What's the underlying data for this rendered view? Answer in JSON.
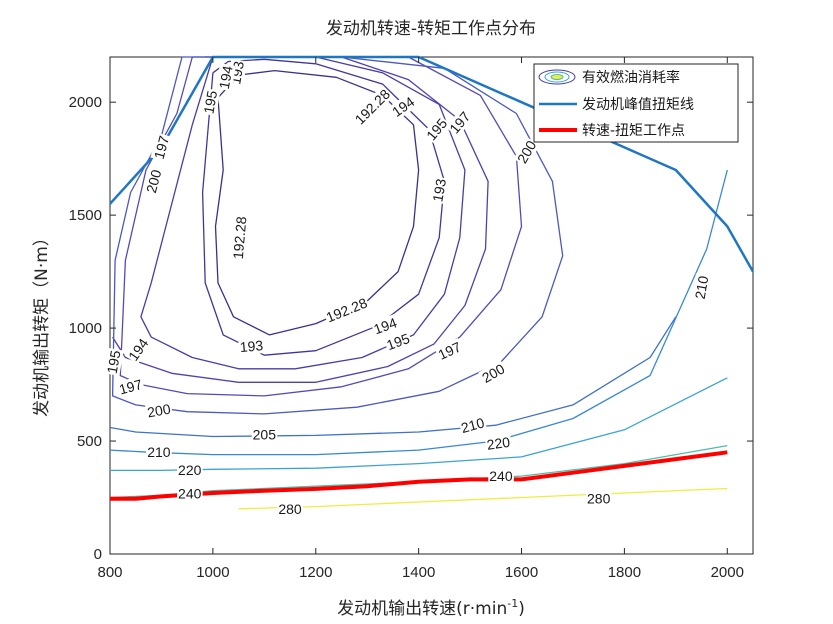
{
  "chart_data": {
    "type": "contour",
    "title": "发动机转速-转矩工作点分布",
    "xlabel": "发动机输出转速(r·min",
    "xlabel_sup": "-1",
    "xlabel_close": ")",
    "ylabel": "发动机输出转矩（N·m）",
    "xlim": [
      800,
      2050
    ],
    "ylim": [
      0,
      2200
    ],
    "xticks": [
      800,
      1000,
      1200,
      1400,
      1600,
      1800,
      2000
    ],
    "yticks": [
      0,
      500,
      1000,
      1500,
      2000
    ],
    "legend": {
      "position": "top-right",
      "entries": [
        "有效燃油消耗率",
        "发动机峰值扭矩线",
        "转速-扭矩工作点"
      ]
    },
    "colors": {
      "peak_torque_line": "#1f77c4",
      "operating_points": "#ff0000",
      "contour_low": "#3b2f8f",
      "contour_high": "#ffff33"
    },
    "peak_torque_curve": {
      "x": [
        800,
        900,
        1000,
        1100,
        1200,
        1300,
        1400,
        1500,
        1600,
        1700,
        1800,
        1900,
        2000,
        2050
      ],
      "y": [
        1550,
        1800,
        2200,
        2200,
        2200,
        2200,
        2200,
        2100,
        2000,
        1900,
        1800,
        1700,
        1450,
        1250
      ]
    },
    "operating_points": {
      "x": [
        800,
        850,
        900,
        1000,
        1100,
        1200,
        1300,
        1400,
        1500,
        1600,
        1700,
        1800,
        1900,
        2000
      ],
      "y": [
        245,
        245,
        255,
        270,
        280,
        288,
        300,
        320,
        330,
        330,
        360,
        390,
        420,
        450
      ]
    },
    "contours": [
      {
        "level": "192.28",
        "color": "#3b2f8f",
        "x": [
          1010,
          1050,
          1120,
          1240,
          1330,
          1390,
          1400,
          1390,
          1360,
          1300,
          1200,
          1110,
          1040,
          1010,
          1005,
          1020,
          1010
        ],
        "y": [
          2020,
          2120,
          2140,
          2110,
          2030,
          1900,
          1700,
          1450,
          1250,
          1120,
          1020,
          970,
          1050,
          1200,
          1450,
          1700,
          2020
        ],
        "labels": [
          {
            "text": "192.28",
            "x": 1310,
            "y": 1980,
            "rot": -45
          },
          {
            "text": "192.28",
            "x": 1052,
            "y": 1400,
            "rot": -85
          },
          {
            "text": "192.28",
            "x": 1260,
            "y": 1080,
            "rot": -22
          }
        ]
      },
      {
        "level": "193",
        "color": "#43359a",
        "x": [
          1000,
          1030,
          1100,
          1200,
          1330,
          1420,
          1450,
          1440,
          1400,
          1320,
          1200,
          1100,
          1020,
          985,
          980,
          1000
        ],
        "y": [
          2130,
          2180,
          2190,
          2170,
          2080,
          1880,
          1650,
          1400,
          1150,
          1010,
          900,
          880,
          970,
          1200,
          1600,
          2130
        ],
        "labels": [
          {
            "text": "193",
            "x": 1047,
            "y": 2130,
            "rot": -80
          },
          {
            "text": "193",
            "x": 1440,
            "y": 1610,
            "rot": -80
          },
          {
            "text": "193",
            "x": 1075,
            "y": 920,
            "rot": -5
          }
        ]
      },
      {
        "level": "194",
        "color": "#4b3ca6",
        "x": [
          1000,
          1070,
          1200,
          1330,
          1440,
          1490,
          1480,
          1450,
          1390,
          1290,
          1160,
          1050,
          960,
          880,
          860,
          880,
          960,
          1000
        ],
        "y": [
          2200,
          2200,
          2200,
          2130,
          1990,
          1700,
          1400,
          1150,
          970,
          870,
          820,
          820,
          870,
          960,
          1050,
          1200,
          1900,
          2200
        ],
        "labels": [
          {
            "text": "194",
            "x": 1025,
            "y": 2110,
            "rot": -80
          },
          {
            "text": "194",
            "x": 1370,
            "y": 1980,
            "rot": -35
          },
          {
            "text": "194",
            "x": 1335,
            "y": 1010,
            "rot": -20
          },
          {
            "text": "194",
            "x": 855,
            "y": 905,
            "rot": -55
          }
        ]
      },
      {
        "level": "195",
        "color": "#523fb0",
        "x": [
          985,
          1120,
          1250,
          1380,
          1480,
          1535,
          1530,
          1490,
          1430,
          1340,
          1200,
          1050,
          920,
          830,
          805
        ],
        "y": [
          2200,
          2200,
          2200,
          2100,
          1920,
          1650,
          1350,
          1100,
          930,
          830,
          760,
          760,
          800,
          870,
          960
        ],
        "labels": [
          {
            "text": "195",
            "x": 995,
            "y": 2000,
            "rot": -80
          },
          {
            "text": "195",
            "x": 1435,
            "y": 1880,
            "rot": -50
          },
          {
            "text": "195",
            "x": 1360,
            "y": 940,
            "rot": -20
          },
          {
            "text": "195",
            "x": 807,
            "y": 850,
            "rot": -80
          }
        ]
      },
      {
        "level": "197",
        "color": "#5549b8",
        "x": [
          960,
          1200,
          1380,
          1520,
          1590,
          1600,
          1560,
          1480,
          1380,
          1250,
          1100,
          950,
          860,
          820,
          830,
          870,
          930,
          960
        ],
        "y": [
          2200,
          2200,
          2200,
          2030,
          1760,
          1450,
          1170,
          960,
          820,
          740,
          700,
          710,
          750,
          790,
          1300,
          1700,
          1950,
          2200
        ],
        "labels": [
          {
            "text": "197",
            "x": 1480,
            "y": 1910,
            "rot": -50
          },
          {
            "text": "197",
            "x": 1460,
            "y": 900,
            "rot": -25
          },
          {
            "text": "197",
            "x": 900,
            "y": 1800,
            "rot": -75
          },
          {
            "text": "197",
            "x": 840,
            "y": 740,
            "rot": -15
          }
        ]
      },
      {
        "level": "200",
        "color": "#4a58c0",
        "x": [
          940,
          1250,
          1450,
          1590,
          1660,
          1680,
          1640,
          1560,
          1440,
          1280,
          1100,
          950,
          850,
          805,
          810,
          840,
          900,
          940
        ],
        "y": [
          2200,
          2200,
          2150,
          1950,
          1650,
          1320,
          1050,
          850,
          720,
          650,
          620,
          630,
          660,
          700,
          1300,
          1600,
          1850,
          2200
        ],
        "labels": [
          {
            "text": "200",
            "x": 1610,
            "y": 1780,
            "rot": -60
          },
          {
            "text": "200",
            "x": 1545,
            "y": 800,
            "rot": -30
          },
          {
            "text": "200",
            "x": 885,
            "y": 1650,
            "rot": -75
          },
          {
            "text": "200",
            "x": 895,
            "y": 635,
            "rot": -10
          }
        ]
      },
      {
        "level": "205",
        "color": "#3e70cc",
        "x": [
          800,
          850,
          1000,
          1200,
          1400,
          1550,
          1700,
          1850,
          1900
        ],
        "y": [
          560,
          540,
          520,
          525,
          540,
          570,
          660,
          870,
          1050
        ],
        "labels": [
          {
            "text": "205",
            "x": 1100,
            "y": 530,
            "rot": 0
          }
        ]
      },
      {
        "level": "210",
        "color": "#3889d2",
        "x": [
          800,
          880,
          1000,
          1200,
          1400,
          1550,
          1700,
          1850,
          1960,
          2000
        ],
        "y": [
          460,
          450,
          440,
          440,
          460,
          500,
          600,
          790,
          1350,
          1700
        ],
        "labels": [
          {
            "text": "210",
            "x": 895,
            "y": 452,
            "rot": 0
          },
          {
            "text": "210",
            "x": 1505,
            "y": 570,
            "rot": -15
          },
          {
            "text": "210",
            "x": 1950,
            "y": 1180,
            "rot": -80
          }
        ]
      },
      {
        "level": "220",
        "color": "#3ca2d8",
        "x": [
          800,
          900,
          1000,
          1200,
          1400,
          1600,
          1800,
          2000
        ],
        "y": [
          370,
          370,
          375,
          380,
          400,
          430,
          550,
          780
        ],
        "labels": [
          {
            "text": "220",
            "x": 955,
            "y": 372,
            "rot": 0
          },
          {
            "text": "220",
            "x": 1555,
            "y": 490,
            "rot": -8
          }
        ]
      },
      {
        "level": "240",
        "color": "#4dbda6",
        "x": [
          800,
          900,
          1000,
          1200,
          1400,
          1600,
          1800,
          2000
        ],
        "y": [
          250,
          260,
          280,
          300,
          320,
          345,
          400,
          480
        ],
        "labels": [
          {
            "text": "240",
            "x": 955,
            "y": 268,
            "rot": 0
          },
          {
            "text": "240",
            "x": 1560,
            "y": 345,
            "rot": 0
          }
        ]
      },
      {
        "level": "280",
        "color": "#eded40",
        "x": [
          1050,
          1200,
          1400,
          1600,
          1800,
          2000
        ],
        "y": [
          200,
          210,
          230,
          250,
          270,
          290
        ],
        "labels": [
          {
            "text": "280",
            "x": 1150,
            "y": 200,
            "rot": 0
          },
          {
            "text": "280",
            "x": 1750,
            "y": 245,
            "rot": 0
          }
        ]
      }
    ]
  }
}
